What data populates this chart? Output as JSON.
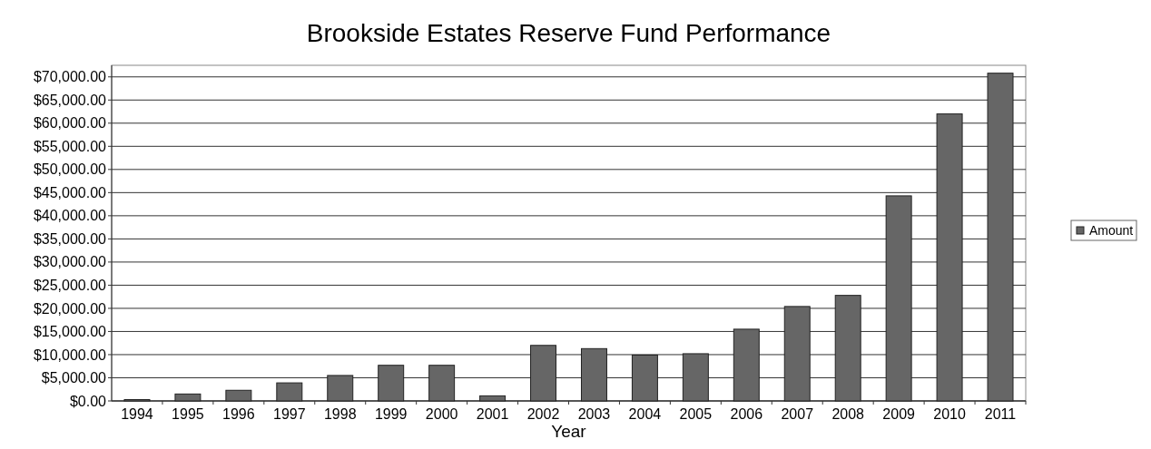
{
  "chart_data": {
    "type": "bar",
    "title": "Brookside Estates Reserve Fund Performance",
    "xlabel": "Year",
    "categories": [
      "1994",
      "1995",
      "1996",
      "1997",
      "1998",
      "1999",
      "2000",
      "2001",
      "2002",
      "2003",
      "2004",
      "2005",
      "2006",
      "2007",
      "2008",
      "2009",
      "2010",
      "2011"
    ],
    "series": [
      {
        "name": "Amount",
        "color": "#666666",
        "values": [
          300,
          1500,
          2300,
          3900,
          5500,
          7700,
          7700,
          1100,
          12000,
          11300,
          9900,
          10200,
          15500,
          20400,
          22800,
          44300,
          62000,
          70800
        ]
      }
    ],
    "ylim": [
      0,
      72500
    ],
    "yticks": [
      {
        "value": 0,
        "label": "$0.00"
      },
      {
        "value": 5000,
        "label": "$5,000.00"
      },
      {
        "value": 10000,
        "label": "$10,000.00"
      },
      {
        "value": 15000,
        "label": "$15,000.00"
      },
      {
        "value": 20000,
        "label": "$20,000.00"
      },
      {
        "value": 25000,
        "label": "$25,000.00"
      },
      {
        "value": 30000,
        "label": "$30,000.00"
      },
      {
        "value": 35000,
        "label": "$35,000.00"
      },
      {
        "value": 40000,
        "label": "$40,000.00"
      },
      {
        "value": 45000,
        "label": "$45,000.00"
      },
      {
        "value": 50000,
        "label": "$50,000.00"
      },
      {
        "value": 55000,
        "label": "$55,000.00"
      },
      {
        "value": 60000,
        "label": "$60,000.00"
      },
      {
        "value": 65000,
        "label": "$65,000.00"
      },
      {
        "value": 70000,
        "label": "$70,000.00"
      }
    ],
    "grid": true,
    "legend": "right"
  }
}
